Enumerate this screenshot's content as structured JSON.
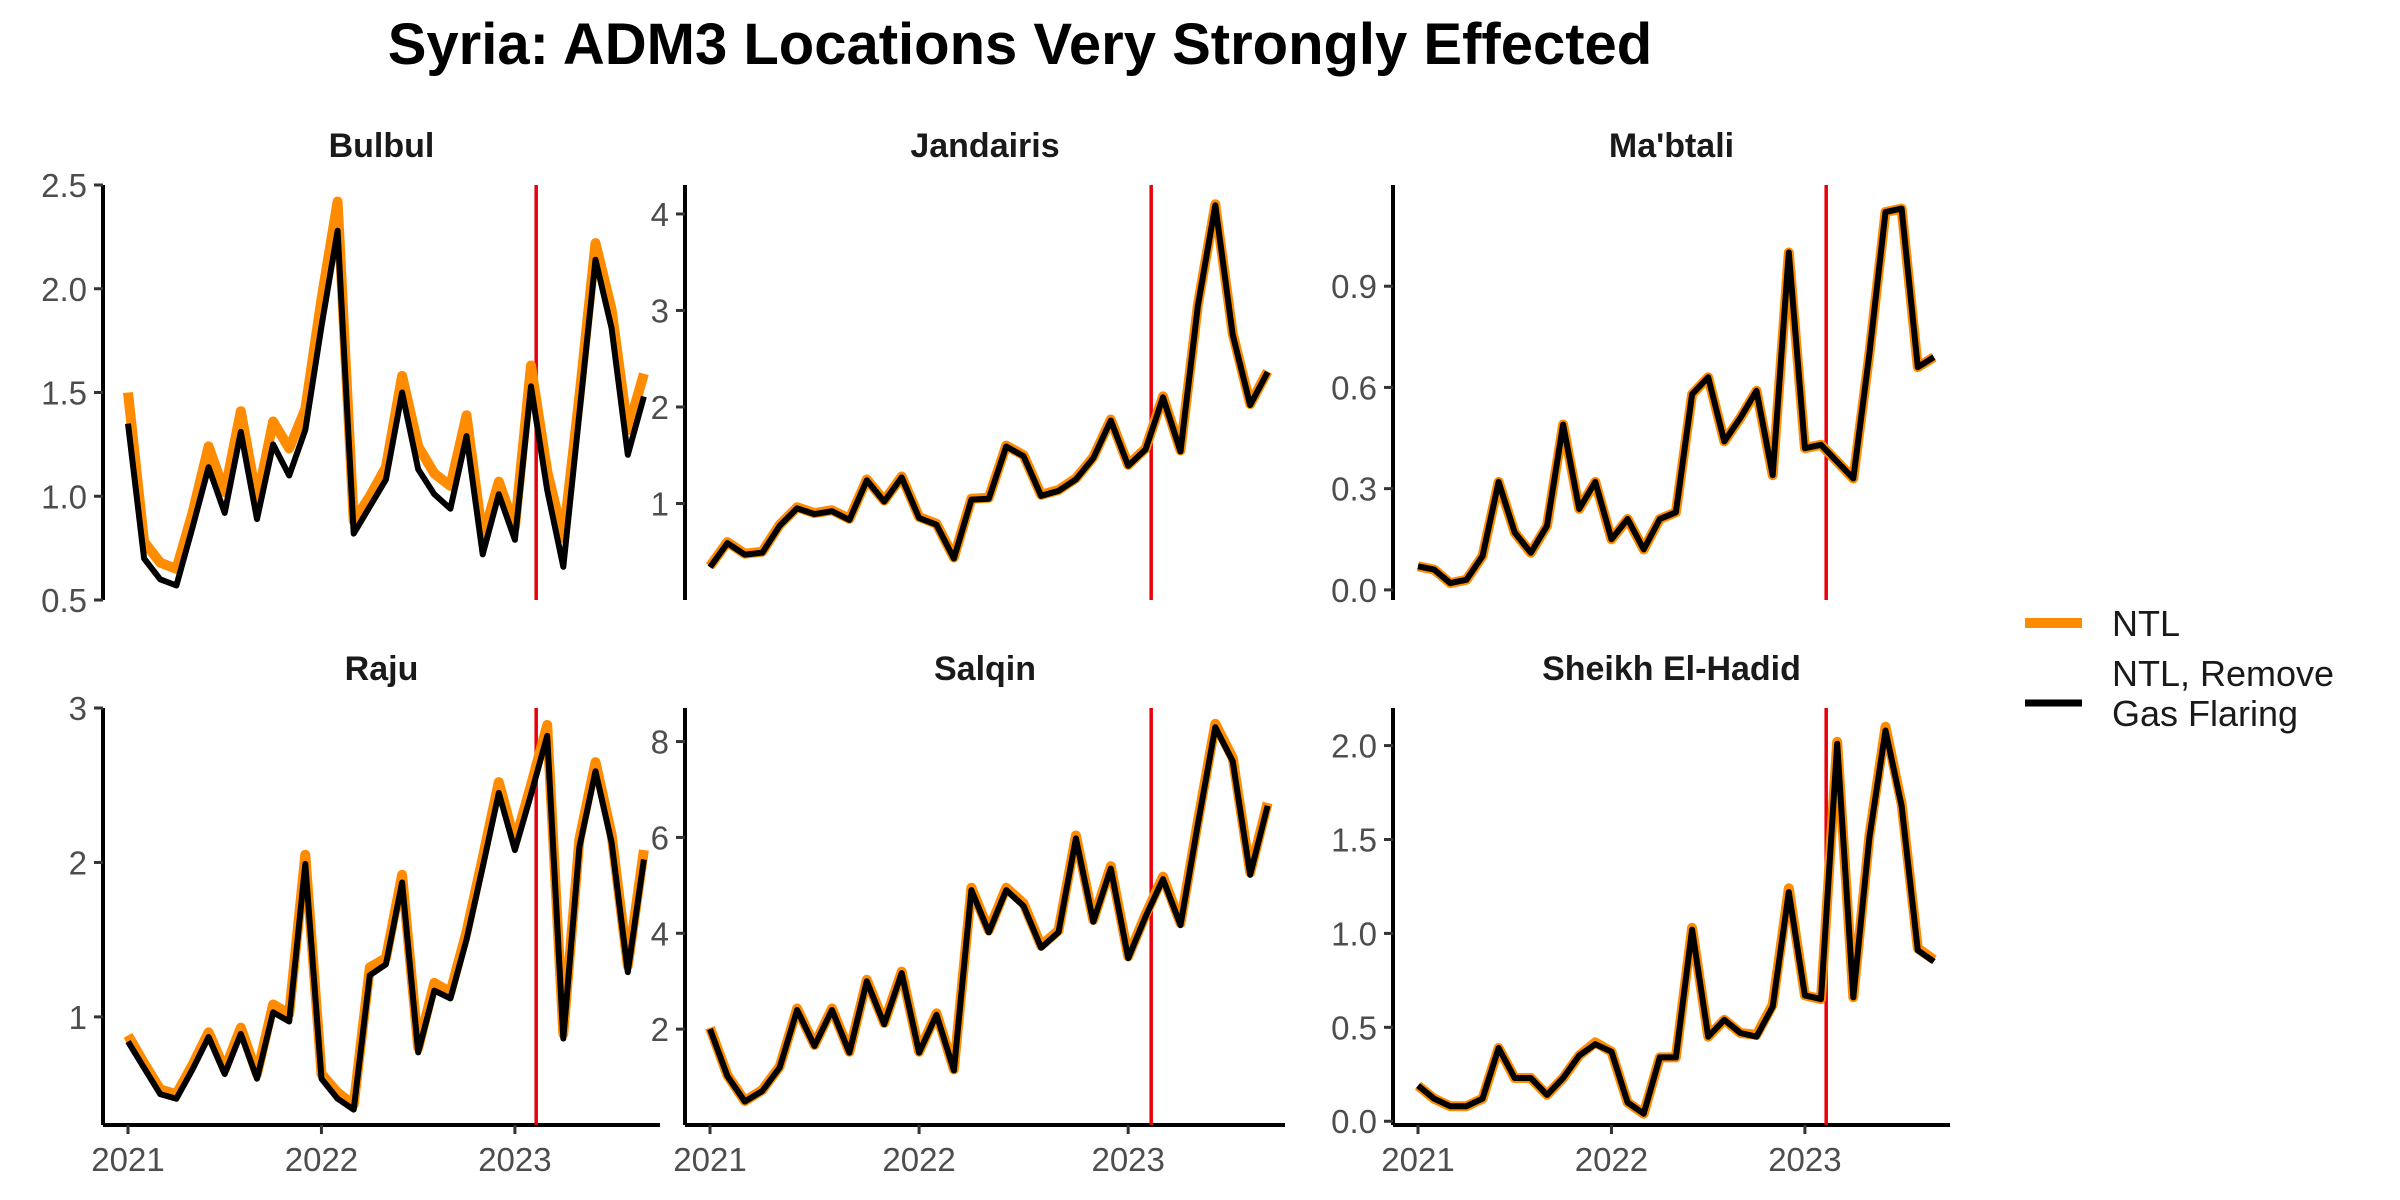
{
  "title": "Syria: ADM3 Locations Very Strongly Effected",
  "legend": {
    "items": [
      {
        "label_lines": [
          "NTL"
        ],
        "color": "#FF8C00"
      },
      {
        "label_lines": [
          "NTL, Remove",
          "Gas Flaring"
        ],
        "color": "#000000"
      }
    ]
  },
  "chart_data": [
    {
      "type": "line",
      "title": "Bulbul",
      "xlim": [
        2021.0,
        2023.75
      ],
      "ylim": [
        0.5,
        2.5
      ],
      "yticks": [
        0.5,
        1.0,
        1.5,
        2.0,
        2.5
      ],
      "ytick_labels": [
        "0.5",
        "1.0",
        "1.5",
        "2.0",
        "2.5"
      ],
      "show_x_axis": false,
      "event_line_x": 2023.11,
      "series": [
        {
          "name": "NTL",
          "x_start": 2021.0,
          "x_step": 0.0833333,
          "values": [
            1.5,
            0.78,
            0.68,
            0.65,
            0.92,
            1.24,
            1.02,
            1.41,
            0.98,
            1.36,
            1.23,
            1.42,
            1.95,
            2.42,
            0.88,
            1.0,
            1.14,
            1.58,
            1.24,
            1.11,
            1.05,
            1.39,
            0.8,
            1.07,
            0.85,
            1.63,
            1.12,
            0.8,
            1.48,
            2.22,
            1.9,
            1.32,
            1.59
          ]
        },
        {
          "name": "NTL, Remove Gas Flaring",
          "x_start": 2021.0,
          "x_step": 0.0833333,
          "values": [
            1.35,
            0.7,
            0.6,
            0.57,
            0.85,
            1.14,
            0.92,
            1.31,
            0.89,
            1.25,
            1.1,
            1.32,
            1.82,
            2.28,
            0.82,
            0.95,
            1.08,
            1.5,
            1.13,
            1.01,
            0.94,
            1.29,
            0.72,
            1.01,
            0.79,
            1.53,
            1.03,
            0.66,
            1.4,
            2.14,
            1.81,
            1.2,
            1.48
          ]
        }
      ]
    },
    {
      "type": "line",
      "title": "Jandairis",
      "xlim": [
        2021.0,
        2023.75
      ],
      "ylim": [
        0.0,
        4.3
      ],
      "yticks": [
        1,
        2,
        3,
        4
      ],
      "ytick_labels": [
        "1",
        "2",
        "3",
        "4"
      ],
      "show_x_axis": false,
      "event_line_x": 2023.11,
      "series": [
        {
          "name": "NTL",
          "x_start": 2021.0,
          "x_step": 0.0833333,
          "values": [
            0.35,
            0.6,
            0.48,
            0.5,
            0.78,
            0.96,
            0.9,
            0.93,
            0.84,
            1.25,
            1.03,
            1.28,
            0.86,
            0.79,
            0.44,
            1.05,
            1.06,
            1.6,
            1.5,
            1.09,
            1.14,
            1.26,
            1.48,
            1.87,
            1.4,
            1.57,
            2.11,
            1.55,
            3.06,
            4.1,
            2.76,
            2.03,
            2.37
          ]
        },
        {
          "name": "NTL, Remove Gas Flaring",
          "x_start": 2021.0,
          "x_step": 0.0833333,
          "values": [
            0.34,
            0.59,
            0.47,
            0.49,
            0.77,
            0.95,
            0.89,
            0.92,
            0.83,
            1.24,
            1.02,
            1.27,
            0.85,
            0.78,
            0.43,
            1.04,
            1.05,
            1.59,
            1.49,
            1.08,
            1.13,
            1.25,
            1.47,
            1.86,
            1.39,
            1.56,
            2.1,
            1.54,
            3.05,
            4.09,
            2.75,
            2.02,
            2.36
          ]
        }
      ]
    },
    {
      "type": "line",
      "title": "Ma'btali",
      "xlim": [
        2021.0,
        2023.75
      ],
      "ylim": [
        -0.03,
        1.2
      ],
      "yticks": [
        0.0,
        0.3,
        0.6,
        0.9
      ],
      "ytick_labels": [
        "0.0",
        "0.3",
        "0.6",
        "0.9"
      ],
      "show_x_axis": false,
      "event_line_x": 2023.11,
      "series": [
        {
          "name": "NTL",
          "x_start": 2021.0,
          "x_step": 0.0833333,
          "values": [
            0.07,
            0.06,
            0.02,
            0.03,
            0.1,
            0.32,
            0.17,
            0.11,
            0.19,
            0.49,
            0.24,
            0.32,
            0.15,
            0.21,
            0.12,
            0.21,
            0.23,
            0.58,
            0.63,
            0.44,
            0.51,
            0.59,
            0.34,
            1.0,
            0.42,
            0.43,
            0.38,
            0.33,
            0.7,
            1.12,
            1.13,
            0.66,
            0.69
          ]
        },
        {
          "name": "NTL, Remove Gas Flaring",
          "x_start": 2021.0,
          "x_step": 0.0833333,
          "values": [
            0.07,
            0.06,
            0.02,
            0.03,
            0.1,
            0.32,
            0.17,
            0.11,
            0.19,
            0.49,
            0.24,
            0.32,
            0.15,
            0.21,
            0.12,
            0.21,
            0.23,
            0.58,
            0.63,
            0.44,
            0.51,
            0.59,
            0.34,
            1.0,
            0.42,
            0.43,
            0.38,
            0.33,
            0.7,
            1.12,
            1.13,
            0.66,
            0.69
          ]
        }
      ]
    },
    {
      "type": "line",
      "title": "Raju",
      "xlim": [
        2021.0,
        2023.75
      ],
      "ylim": [
        0.3,
        3.0
      ],
      "yticks": [
        1,
        2,
        3
      ],
      "ytick_labels": [
        "1",
        "2",
        "3"
      ],
      "show_x_axis": true,
      "xticks": [
        2021,
        2022,
        2023
      ],
      "xtick_labels": [
        "2021",
        "2022",
        "2023"
      ],
      "event_line_x": 2023.11,
      "series": [
        {
          "name": "NTL",
          "x_start": 2021.0,
          "x_step": 0.0833333,
          "values": [
            0.88,
            0.7,
            0.53,
            0.5,
            0.69,
            0.9,
            0.66,
            0.93,
            0.63,
            1.08,
            1.02,
            2.05,
            0.63,
            0.51,
            0.43,
            1.32,
            1.38,
            1.92,
            0.8,
            1.22,
            1.16,
            1.55,
            2.03,
            2.52,
            2.13,
            2.5,
            2.89,
            0.89,
            2.15,
            2.65,
            2.18,
            1.33,
            2.08
          ]
        },
        {
          "name": "NTL, Remove Gas Flaring",
          "x_start": 2021.0,
          "x_step": 0.0833333,
          "values": [
            0.84,
            0.67,
            0.5,
            0.47,
            0.66,
            0.87,
            0.63,
            0.89,
            0.6,
            1.03,
            0.97,
            1.99,
            0.6,
            0.47,
            0.4,
            1.27,
            1.34,
            1.87,
            0.77,
            1.17,
            1.12,
            1.5,
            1.97,
            2.45,
            2.08,
            2.44,
            2.82,
            0.86,
            2.1,
            2.59,
            2.13,
            1.29,
            2.02
          ]
        }
      ]
    },
    {
      "type": "line",
      "title": "Salqin",
      "xlim": [
        2021.0,
        2023.75
      ],
      "ylim": [
        0.0,
        8.7
      ],
      "yticks": [
        2,
        4,
        6,
        8
      ],
      "ytick_labels": [
        "2",
        "4",
        "6",
        "8"
      ],
      "show_x_axis": true,
      "xticks": [
        2021,
        2022,
        2023
      ],
      "xtick_labels": [
        "2021",
        "2022",
        "2023"
      ],
      "event_line_x": 2023.11,
      "series": [
        {
          "name": "NTL",
          "x_start": 2021.0,
          "x_step": 0.0833333,
          "values": [
            2.03,
            1.04,
            0.5,
            0.73,
            1.22,
            2.43,
            1.67,
            2.43,
            1.53,
            3.03,
            2.13,
            3.2,
            1.53,
            2.33,
            1.16,
            4.95,
            4.06,
            4.95,
            4.62,
            3.74,
            4.06,
            6.04,
            4.28,
            5.4,
            3.52,
            4.39,
            5.18,
            4.21,
            6.34,
            8.37,
            7.66,
            5.27,
            6.72
          ]
        },
        {
          "name": "NTL, Remove Gas Flaring",
          "x_start": 2021.0,
          "x_step": 0.0833333,
          "values": [
            2.0,
            1.02,
            0.49,
            0.71,
            1.2,
            2.4,
            1.65,
            2.4,
            1.51,
            3.0,
            2.1,
            3.17,
            1.51,
            2.3,
            1.14,
            4.9,
            4.02,
            4.9,
            4.57,
            3.7,
            4.02,
            5.98,
            4.24,
            5.35,
            3.48,
            4.35,
            5.13,
            4.17,
            6.28,
            8.3,
            7.59,
            5.22,
            6.66
          ]
        }
      ]
    },
    {
      "type": "line",
      "title": "Sheikh El-Hadid",
      "xlim": [
        2021.0,
        2023.75
      ],
      "ylim": [
        -0.02,
        2.2
      ],
      "yticks": [
        0.0,
        0.5,
        1.0,
        1.5,
        2.0
      ],
      "ytick_labels": [
        "0.0",
        "0.5",
        "1.0",
        "1.5",
        "2.0"
      ],
      "show_x_axis": true,
      "xticks": [
        2021,
        2022,
        2023
      ],
      "xtick_labels": [
        "2021",
        "2022",
        "2023"
      ],
      "event_line_x": 2023.11,
      "series": [
        {
          "name": "NTL",
          "x_start": 2021.0,
          "x_step": 0.0833333,
          "values": [
            0.19,
            0.12,
            0.08,
            0.08,
            0.12,
            0.39,
            0.23,
            0.23,
            0.14,
            0.23,
            0.35,
            0.42,
            0.37,
            0.1,
            0.04,
            0.34,
            0.34,
            1.03,
            0.45,
            0.54,
            0.47,
            0.46,
            0.62,
            1.24,
            0.67,
            0.65,
            2.02,
            0.66,
            1.52,
            2.1,
            1.69,
            0.92,
            0.86
          ]
        },
        {
          "name": "NTL, Remove Gas Flaring",
          "x_start": 2021.0,
          "x_step": 0.0833333,
          "values": [
            0.19,
            0.12,
            0.08,
            0.08,
            0.12,
            0.39,
            0.23,
            0.23,
            0.14,
            0.23,
            0.35,
            0.41,
            0.37,
            0.1,
            0.04,
            0.34,
            0.34,
            1.02,
            0.45,
            0.54,
            0.47,
            0.45,
            0.61,
            1.22,
            0.67,
            0.65,
            2.01,
            0.66,
            1.51,
            2.08,
            1.68,
            0.91,
            0.85
          ]
        }
      ]
    }
  ]
}
